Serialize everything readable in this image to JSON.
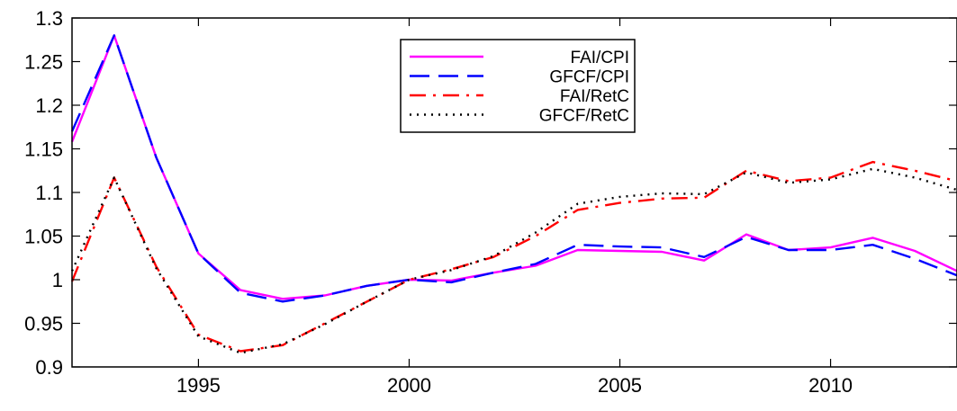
{
  "chart_data": {
    "type": "line",
    "title": "",
    "xlabel": "",
    "ylabel": "",
    "xlim": [
      1992,
      2013
    ],
    "ylim": [
      0.9,
      1.3
    ],
    "x_ticks": [
      1995,
      2000,
      2005,
      2010
    ],
    "y_ticks": [
      0.9,
      0.95,
      1,
      1.05,
      1.1,
      1.15,
      1.2,
      1.25,
      1.3
    ],
    "y_tick_labels": [
      "0.9",
      "0.95",
      "1",
      "1.05",
      "1.1",
      "1.15",
      "1.2",
      "1.25",
      "1.3"
    ],
    "grid": false,
    "legend_position": "top-center",
    "x": [
      1992,
      1993,
      1994,
      1995,
      1996,
      1997,
      1998,
      1999,
      2000,
      2001,
      2002,
      2003,
      2004,
      2005,
      2006,
      2007,
      2008,
      2009,
      2010,
      2011,
      2012,
      2013
    ],
    "series": [
      {
        "name": "FAI/CPI",
        "color": "#ff00ff",
        "dash": "solid",
        "values": [
          1.158,
          1.28,
          1.14,
          1.03,
          0.988,
          0.978,
          0.982,
          0.993,
          1.0,
          0.999,
          1.008,
          1.016,
          1.034,
          1.033,
          1.032,
          1.022,
          1.052,
          1.034,
          1.037,
          1.048,
          1.033,
          1.01
        ]
      },
      {
        "name": "GFCF/CPI",
        "color": "#0000ff",
        "dash": "dashed",
        "values": [
          1.17,
          1.28,
          1.14,
          1.03,
          0.985,
          0.975,
          0.982,
          0.993,
          1.0,
          0.997,
          1.008,
          1.018,
          1.04,
          1.038,
          1.037,
          1.026,
          1.049,
          1.034,
          1.034,
          1.04,
          1.024,
          1.005
        ]
      },
      {
        "name": "FAI/RetC",
        "color": "#ff0000",
        "dash": "dashdot",
        "values": [
          0.998,
          1.117,
          1.015,
          0.937,
          0.918,
          0.925,
          0.95,
          0.975,
          1.0,
          1.012,
          1.026,
          1.05,
          1.08,
          1.088,
          1.093,
          1.094,
          1.125,
          1.113,
          1.117,
          1.135,
          1.125,
          1.113
        ]
      },
      {
        "name": "GFCF/RetC",
        "color": "#000000",
        "dash": "dotted",
        "values": [
          1.01,
          1.117,
          1.013,
          0.935,
          0.916,
          0.926,
          0.949,
          0.975,
          1.0,
          1.011,
          1.027,
          1.054,
          1.087,
          1.095,
          1.099,
          1.098,
          1.123,
          1.111,
          1.115,
          1.127,
          1.117,
          1.103
        ]
      }
    ]
  }
}
